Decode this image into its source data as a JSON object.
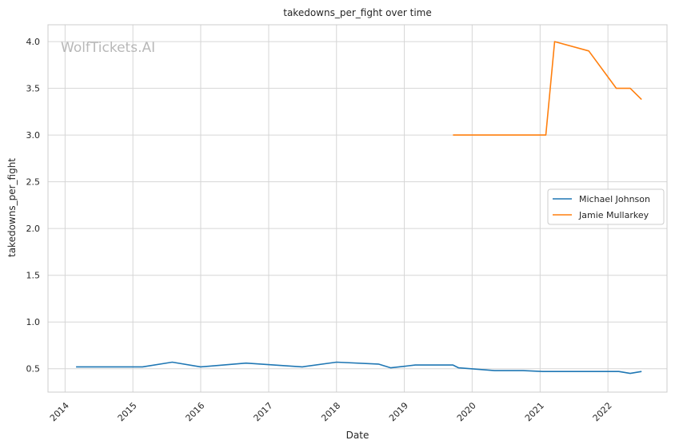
{
  "chart_data": {
    "type": "line",
    "title": "takedowns_per_fight over time",
    "xlabel": "Date",
    "ylabel": "takedowns_per_fight",
    "watermark": "WolfTickets.AI",
    "xlim": [
      "2013-10-01",
      "2022-11-15"
    ],
    "ylim": [
      0.25,
      4.18
    ],
    "x_ticks": [
      "2014",
      "2015",
      "2016",
      "2017",
      "2018",
      "2019",
      "2020",
      "2021",
      "2022"
    ],
    "y_ticks": [
      "0.5",
      "1.0",
      "1.5",
      "2.0",
      "2.5",
      "3.0",
      "3.5",
      "4.0"
    ],
    "grid": true,
    "legend_position": "center-right",
    "series": [
      {
        "name": "Michael Johnson",
        "color": "#1f77b4",
        "points": [
          [
            "2014-03-01",
            0.52
          ],
          [
            "2015-02-22",
            0.52
          ],
          [
            "2015-08-01",
            0.57
          ],
          [
            "2016-01-01",
            0.52
          ],
          [
            "2016-09-01",
            0.56
          ],
          [
            "2017-07-01",
            0.52
          ],
          [
            "2018-01-01",
            0.57
          ],
          [
            "2018-08-15",
            0.55
          ],
          [
            "2018-10-20",
            0.51
          ],
          [
            "2019-03-01",
            0.54
          ],
          [
            "2019-09-20",
            0.54
          ],
          [
            "2019-10-20",
            0.51
          ],
          [
            "2020-05-01",
            0.48
          ],
          [
            "2020-10-01",
            0.48
          ],
          [
            "2021-01-15",
            0.47
          ],
          [
            "2022-03-01",
            0.47
          ],
          [
            "2022-05-01",
            0.45
          ],
          [
            "2022-07-01",
            0.47
          ]
        ]
      },
      {
        "name": "Jamie Mullarkey",
        "color": "#ff7f0e",
        "points": [
          [
            "2019-09-20",
            3.0
          ],
          [
            "2021-02-01",
            3.0
          ],
          [
            "2021-03-20",
            4.0
          ],
          [
            "2021-09-20",
            3.9
          ],
          [
            "2022-02-15",
            3.5
          ],
          [
            "2022-05-01",
            3.5
          ],
          [
            "2022-07-01",
            3.38
          ]
        ]
      }
    ]
  }
}
